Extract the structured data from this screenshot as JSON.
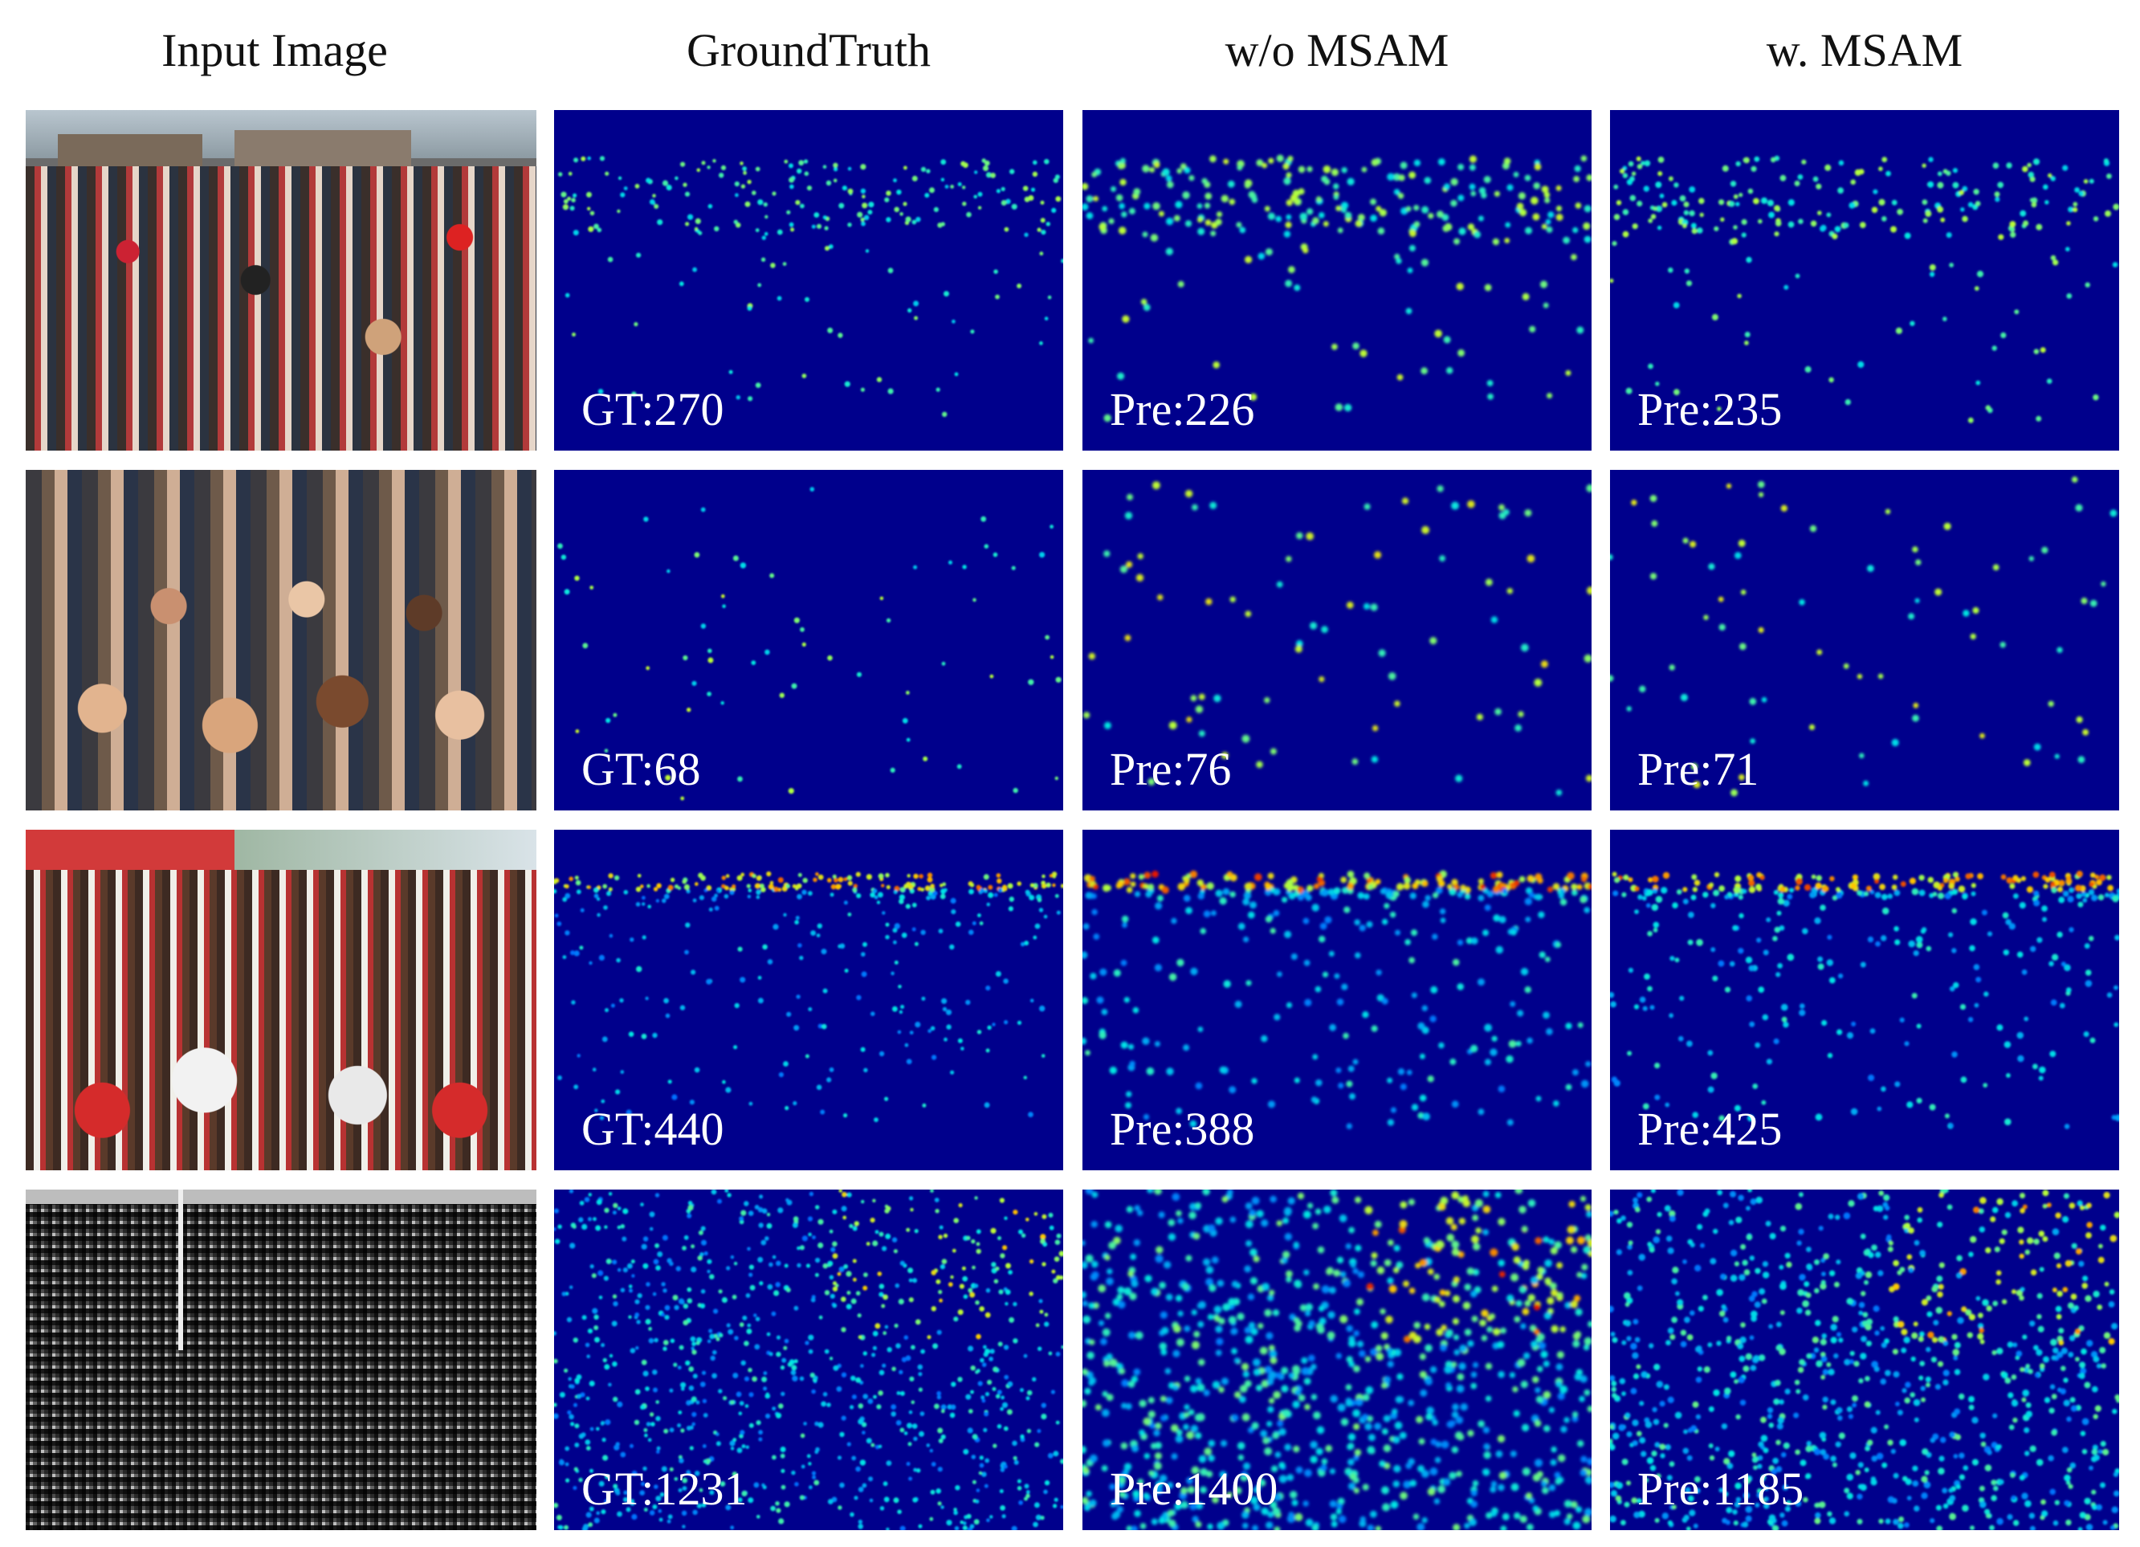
{
  "column_headers": [
    "Input Image",
    "GroundTruth",
    "w/o MSAM",
    "w. MSAM"
  ],
  "rows": [
    {
      "input_image": "crowd-photo-1",
      "ground_truth_label": "GT:270",
      "without_msam_label": "Pre:226",
      "with_msam_label": "Pre:235",
      "density_profile": "top-band-sparse"
    },
    {
      "input_image": "crowd-photo-2",
      "ground_truth_label": "GT:68",
      "without_msam_label": "Pre:76",
      "with_msam_label": "Pre:71",
      "density_profile": "very-sparse"
    },
    {
      "input_image": "crowd-photo-3",
      "ground_truth_label": "GT:440",
      "without_msam_label": "Pre:388",
      "with_msam_label": "Pre:425",
      "density_profile": "top-line-dense"
    },
    {
      "input_image": "crowd-photo-4-grayscale",
      "ground_truth_label": "GT:1231",
      "without_msam_label": "Pre:1400",
      "with_msam_label": "Pre:1185",
      "density_profile": "dense-full"
    }
  ],
  "colors": {
    "density_background": "#00008c",
    "label_text": "#ffffff"
  }
}
